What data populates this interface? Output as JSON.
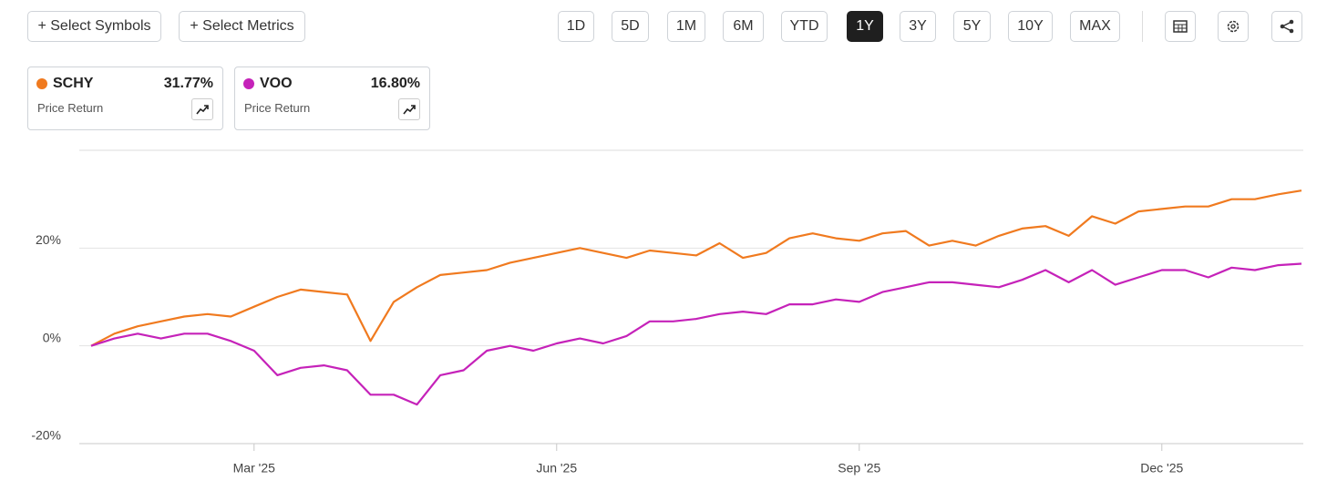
{
  "toolbar": {
    "symbols_button": "+ Select Symbols",
    "metrics_button": "+ Select Metrics",
    "ranges": [
      "1D",
      "5D",
      "1M",
      "6M",
      "YTD",
      "1Y",
      "3Y",
      "5Y",
      "10Y",
      "MAX"
    ],
    "active_range": "1Y"
  },
  "legend": [
    {
      "return": "31.77%",
      "metric": "Price Return"
    },
    {
      "return": "16.80%",
      "metric": "Price Return"
    }
  ],
  "chart_data": {
    "type": "line",
    "categories": [
      null,
      null,
      null,
      null,
      null,
      null,
      null,
      "Mar '25",
      null,
      null,
      null,
      null,
      null,
      null,
      null,
      null,
      null,
      null,
      null,
      null,
      "Jun '25",
      null,
      null,
      null,
      null,
      null,
      null,
      null,
      null,
      null,
      null,
      null,
      null,
      "Sep '25",
      null,
      null,
      null,
      null,
      null,
      null,
      null,
      null,
      null,
      null,
      null,
      null,
      "Dec '25",
      null,
      null,
      null,
      null,
      null,
      null
    ],
    "series": [
      {
        "name": "SCHY",
        "color": "#f07a1f",
        "values": [
          0,
          2.5,
          4,
          5,
          6,
          6.5,
          6,
          8,
          10,
          11.5,
          11,
          10.5,
          1,
          9,
          12,
          14.5,
          15,
          15.5,
          17,
          18,
          19,
          20,
          19,
          18,
          19.5,
          19,
          18.5,
          21,
          18,
          19,
          22,
          23,
          22,
          21.5,
          23,
          23.5,
          20.5,
          21.5,
          20.5,
          22.5,
          24,
          24.5,
          22.5,
          26.5,
          25,
          27.5,
          28,
          28.5,
          28.5,
          30,
          30,
          31,
          31.77
        ]
      },
      {
        "name": "VOO",
        "color": "#c522b9",
        "values": [
          0,
          1.5,
          2.5,
          1.5,
          2.5,
          2.5,
          1,
          -1,
          -6,
          -4.5,
          -4,
          -5,
          -10,
          -10,
          -12,
          -6,
          -5,
          -1,
          0,
          -1,
          0.5,
          1.5,
          0.5,
          2,
          5,
          5,
          5.5,
          6.5,
          7,
          6.5,
          8.5,
          8.5,
          9.5,
          9,
          11,
          12,
          13,
          13,
          12.5,
          12,
          13.5,
          15.5,
          13,
          15.5,
          12.5,
          14,
          15.5,
          15.5,
          14,
          16,
          15.5,
          16.5,
          16.8
        ]
      }
    ],
    "ylim": [
      -20,
      40
    ],
    "yticks": [
      {
        "value": -20,
        "label": "-20%"
      },
      {
        "value": 0,
        "label": "0%"
      },
      {
        "value": 20,
        "label": "20%"
      }
    ],
    "grid": true
  }
}
